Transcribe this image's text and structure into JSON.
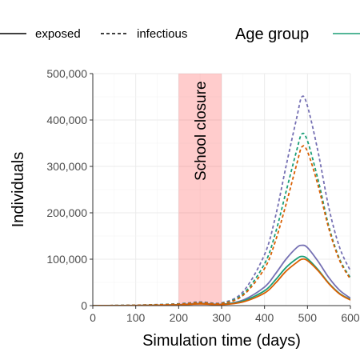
{
  "chart_data": {
    "type": "line",
    "xlabel": "Simulation time (days)",
    "ylabel": "Individuals",
    "xlim": [
      0,
      600
    ],
    "ylim": [
      0,
      500000
    ],
    "x_ticks": [
      0,
      100,
      200,
      300,
      400,
      500,
      600
    ],
    "x_tick_labels": [
      "0",
      "100",
      "200",
      "300",
      "400",
      "500",
      "600"
    ],
    "y_ticks": [
      0,
      100000,
      200000,
      300000,
      400000,
      500000
    ],
    "y_tick_labels": [
      "0",
      "100,000",
      "200,000",
      "300,000",
      "400,000",
      "500,000"
    ],
    "grid": true,
    "legend": {
      "position": "top",
      "linetype_entries": [
        {
          "label": "exposed",
          "style": "solid"
        },
        {
          "label": "infectious",
          "style": "dashed"
        }
      ],
      "color_title": "Age group"
    },
    "annotation": {
      "label": "School closure",
      "x_start": 200,
      "x_end": 300,
      "color": "#ff0000"
    },
    "x": [
      0,
      100,
      200,
      250,
      300,
      350,
      400,
      425,
      450,
      475,
      487,
      500,
      525,
      550,
      575,
      600
    ],
    "series": [
      {
        "group": "purple",
        "color": "#7570b3",
        "style": "solid",
        "values": [
          0,
          300,
          2000,
          5000,
          3000,
          12000,
          40000,
          68000,
          100000,
          125000,
          130000,
          125000,
          95000,
          60000,
          33000,
          16000
        ]
      },
      {
        "group": "green",
        "color": "#1b9e77",
        "style": "solid",
        "values": [
          0,
          250,
          1600,
          4000,
          2500,
          10000,
          32000,
          55000,
          82000,
          101000,
          106000,
          101000,
          77000,
          48000,
          26000,
          13000
        ]
      },
      {
        "group": "orange",
        "color": "#d95f02",
        "style": "solid",
        "values": [
          0,
          200,
          1500,
          3600,
          2200,
          8000,
          27000,
          48000,
          74000,
          93000,
          100000,
          97000,
          75000,
          47000,
          25000,
          12000
        ]
      },
      {
        "group": "purple",
        "color": "#7570b3",
        "style": "dashed",
        "values": [
          0,
          1000,
          4000,
          8000,
          6000,
          30000,
          110000,
          190000,
          300000,
          405000,
          450000,
          430000,
          330000,
          210000,
          125000,
          75000
        ]
      },
      {
        "group": "green",
        "color": "#1b9e77",
        "style": "dashed",
        "values": [
          0,
          900,
          3500,
          7000,
          5000,
          25000,
          90000,
          155000,
          245000,
          335000,
          370000,
          355000,
          270000,
          170000,
          100000,
          60000
        ]
      },
      {
        "group": "orange",
        "color": "#d95f02",
        "style": "dashed",
        "values": [
          0,
          800,
          3000,
          6500,
          4500,
          22000,
          80000,
          138000,
          218000,
          305000,
          342000,
          332000,
          258000,
          165000,
          97000,
          57000
        ]
      }
    ]
  }
}
